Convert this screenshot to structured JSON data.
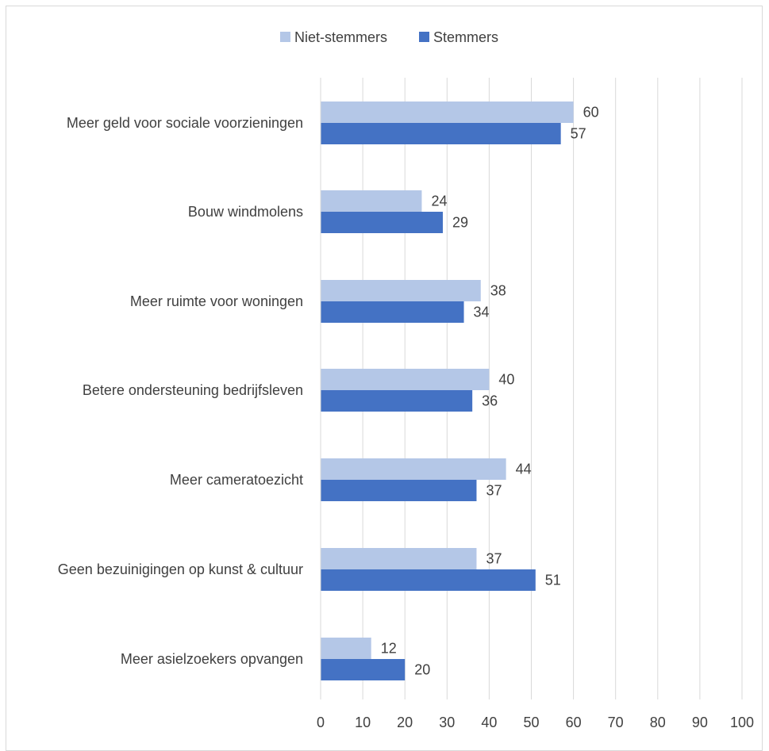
{
  "chart_data": {
    "type": "bar",
    "orientation": "horizontal",
    "title": "",
    "xlabel": "",
    "ylabel": "",
    "xlim": [
      0,
      100
    ],
    "x_ticks": [
      0,
      10,
      20,
      30,
      40,
      50,
      60,
      70,
      80,
      90,
      100
    ],
    "grid": "vertical",
    "legend_position": "top",
    "colors": {
      "Niet-stemmers": "#b4c7e7",
      "Stemmers": "#4472c4"
    },
    "categories": [
      "Meer geld voor sociale voorzieningen",
      "Bouw windmolens",
      "Meer ruimte voor woningen",
      "Betere ondersteuning bedrijfsleven",
      "Meer cameratoezicht",
      "Geen bezuinigingen op kunst & cultuur",
      "Meer asielzoekers opvangen"
    ],
    "series": [
      {
        "name": "Niet-stemmers",
        "values": [
          60,
          24,
          38,
          40,
          44,
          37,
          12
        ]
      },
      {
        "name": "Stemmers",
        "values": [
          57,
          29,
          34,
          36,
          37,
          51,
          20
        ]
      }
    ],
    "data_labels": true
  }
}
